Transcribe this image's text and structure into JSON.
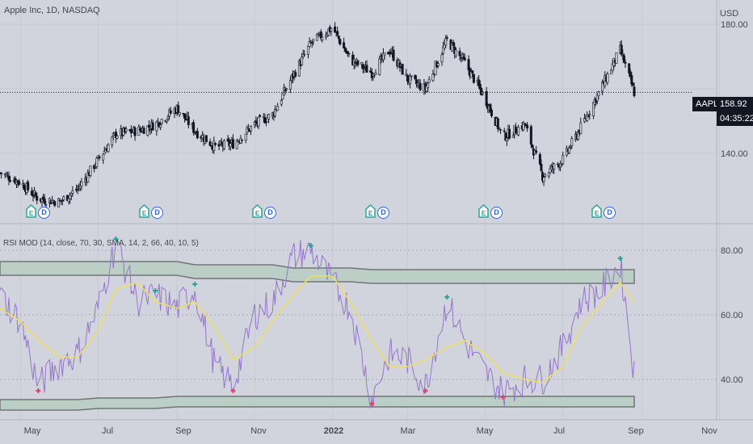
{
  "header": {
    "symbol_description": "Apple Inc, 1D, NASDAQ",
    "currency": "USD"
  },
  "price_panel": {
    "ticker": "AAPL",
    "last_price": "158.92",
    "countdown": "04:35:22",
    "price_ticks": [
      "180.00",
      "140.00"
    ]
  },
  "rsi_panel": {
    "legend": "RSI MOD (14, close, 70, 30, SMA, 14, 2, 66, 40, 10, 5)",
    "ticks": [
      "80.00",
      "60.00",
      "40.00"
    ]
  },
  "time_axis": {
    "labels": [
      "May",
      "Jul",
      "Sep",
      "Nov",
      "2022",
      "Mar",
      "May",
      "Jul",
      "Sep",
      "Nov"
    ]
  },
  "events": {
    "earnings_icon_label": "E",
    "dividend_icon_label": "D",
    "count": 6
  },
  "colors": {
    "background": "#d1d4dc",
    "candle": "#131722",
    "rsi_line": "#9575cd",
    "rsi_ma": "#f0e05a",
    "band_fill": "#bccfc6",
    "band_border": "#737477",
    "signal_up": "#26a69a",
    "signal_down": "#e0426a",
    "dividend": "#2962ff",
    "earnings": "#26a69a"
  },
  "chart_data": [
    {
      "type": "candlestick",
      "title": "Apple Inc, 1D, NASDAQ",
      "ylabel": "USD",
      "ylim": [
        120,
        185
      ],
      "x": [
        "2021-04-15",
        "2021-05-01",
        "2021-05-15",
        "2021-06-01",
        "2021-06-15",
        "2021-07-01",
        "2021-07-15",
        "2021-08-01",
        "2021-08-15",
        "2021-09-01",
        "2021-09-15",
        "2021-10-01",
        "2021-10-15",
        "2021-11-01",
        "2021-11-15",
        "2021-12-01",
        "2021-12-15",
        "2022-01-01",
        "2022-01-15",
        "2022-02-01",
        "2022-02-15",
        "2022-03-01",
        "2022-03-15",
        "2022-04-01",
        "2022-04-15",
        "2022-05-01",
        "2022-05-15",
        "2022-06-01",
        "2022-06-15",
        "2022-07-01",
        "2022-07-15",
        "2022-08-01",
        "2022-08-15",
        "2022-08-26"
      ],
      "close": [
        134,
        131,
        126,
        125,
        129,
        138,
        146,
        147,
        149,
        154,
        147,
        142,
        143,
        149,
        152,
        164,
        174,
        179,
        169,
        165,
        172,
        163,
        160,
        175,
        168,
        157,
        145,
        149,
        133,
        138,
        148,
        161,
        172,
        158.92
      ],
      "last_price": 158.92
    },
    {
      "type": "line",
      "title": "RSI MOD (14, close, 70, 30, SMA, 14, 2, 66, 40, 10, 5)",
      "ylim": [
        30,
        85
      ],
      "x": [
        "2021-04-15",
        "2021-05-01",
        "2021-05-15",
        "2021-06-01",
        "2021-06-15",
        "2021-07-01",
        "2021-07-15",
        "2021-08-01",
        "2021-08-15",
        "2021-09-01",
        "2021-09-15",
        "2021-10-01",
        "2021-10-15",
        "2021-11-01",
        "2021-11-15",
        "2021-12-01",
        "2021-12-15",
        "2022-01-01",
        "2022-01-15",
        "2022-02-01",
        "2022-02-15",
        "2022-03-01",
        "2022-03-15",
        "2022-04-01",
        "2022-04-15",
        "2022-05-01",
        "2022-05-15",
        "2022-06-01",
        "2022-06-15",
        "2022-07-01",
        "2022-07-15",
        "2022-08-01",
        "2022-08-15",
        "2022-08-26"
      ],
      "series": [
        {
          "values": [
            66,
            58,
            38,
            45,
            48,
            62,
            82,
            64,
            66,
            62,
            68,
            44,
            38,
            60,
            64,
            78,
            80,
            70,
            62,
            34,
            48,
            46,
            38,
            64,
            52,
            42,
            36,
            40,
            40,
            50,
            64,
            68,
            76,
            42
          ]
        },
        {
          "values": [
            62,
            58,
            52,
            47,
            47,
            55,
            68,
            70,
            64,
            62,
            64,
            56,
            46,
            50,
            58,
            66,
            72,
            72,
            64,
            52,
            44,
            44,
            46,
            50,
            52,
            48,
            42,
            40,
            39,
            44,
            56,
            64,
            70,
            64
          ]
        }
      ],
      "upper_band": [
        73,
        73,
        73,
        73,
        73,
        73,
        73,
        73,
        73,
        73,
        72,
        72,
        72,
        72,
        72,
        71,
        71,
        71,
        71,
        70.5,
        70.5,
        70.5,
        70.5,
        70.5,
        70.5,
        70.5,
        70.5,
        70.5,
        70.5,
        70.5,
        70.5,
        70.5,
        70.5,
        70.5
      ],
      "lower_band": [
        33,
        33,
        33,
        33,
        33,
        33.5,
        33.5,
        33.5,
        33.5,
        34,
        34,
        34,
        34,
        34,
        34,
        34,
        34,
        34,
        34,
        34,
        34,
        34,
        34,
        34,
        34,
        34,
        34,
        34,
        34,
        34,
        34,
        34,
        34,
        34
      ]
    }
  ]
}
